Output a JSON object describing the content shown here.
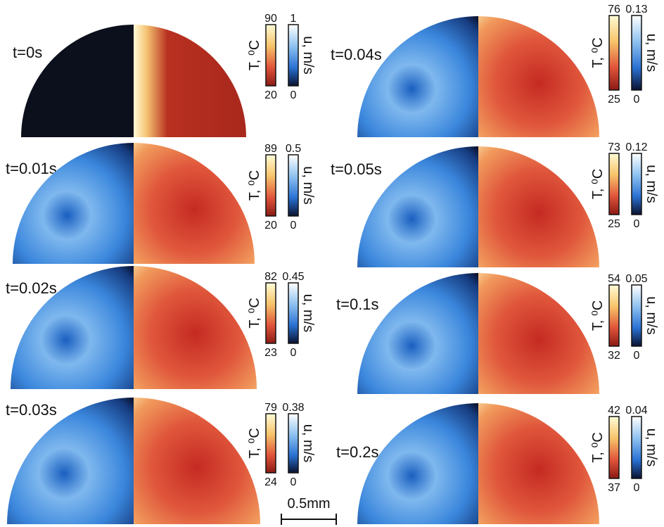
{
  "temperature_label": "T, ⁰C",
  "velocity_label": "u, m/s",
  "scale_bar": "0.5mm",
  "panels": [
    {
      "time": "t=0s",
      "temp_max": "90",
      "temp_min": "20",
      "vel_max": "1",
      "vel_min": "0"
    },
    {
      "time": "t=0.01s",
      "temp_max": "89",
      "temp_min": "20",
      "vel_max": "0.5",
      "vel_min": "0"
    },
    {
      "time": "t=0.02s",
      "temp_max": "82",
      "temp_min": "23",
      "vel_max": "0.45",
      "vel_min": "0"
    },
    {
      "time": "t=0.03s",
      "temp_max": "79",
      "temp_min": "24",
      "vel_max": "0.38",
      "vel_min": "0"
    },
    {
      "time": "t=0.04s",
      "temp_max": "76",
      "temp_min": "25",
      "vel_max": "0.13",
      "vel_min": "0"
    },
    {
      "time": "t=0.05s",
      "temp_max": "73",
      "temp_min": "25",
      "vel_max": "0.12",
      "vel_min": "0"
    },
    {
      "time": "t=0.1s",
      "temp_max": "54",
      "temp_min": "32",
      "vel_max": "0.05",
      "vel_min": "0"
    },
    {
      "time": "t=0.2s",
      "temp_max": "42",
      "temp_min": "37",
      "vel_max": "0.04",
      "vel_min": "0"
    }
  ]
}
